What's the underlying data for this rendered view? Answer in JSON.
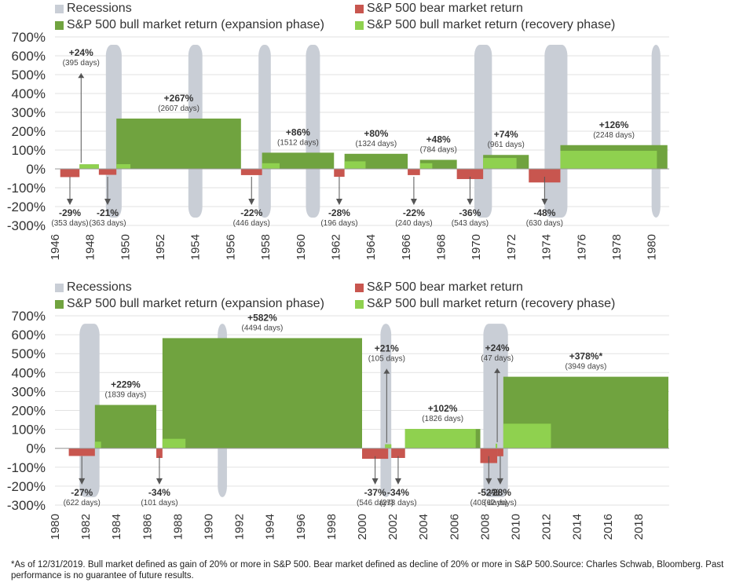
{
  "legend": {
    "recessions": "Recessions",
    "bear": "S&P 500 bear market return",
    "expansion": "S&P 500 bull market return (expansion phase)",
    "recovery": "S&P 500 bull market return (recovery phase)"
  },
  "colors": {
    "recession": "#c9ced6",
    "bear": "#c8564f",
    "expansion": "#70a33f",
    "recovery": "#8fd14f",
    "grid": "#e2e2e2",
    "arrow": "#555555"
  },
  "footnote": "*As of 12/31/2019. Bull market defined as gain of 20% or more in S&P 500. Bear market defined as decline of 20% or more in S&P 500.Source: Charles Schwab, Bloomberg. Past performance is no guarantee of future results.",
  "chart_data": [
    {
      "type": "bar",
      "ylim": [
        -300,
        700
      ],
      "yticks": [
        700,
        600,
        500,
        400,
        300,
        200,
        100,
        0,
        -100,
        -200,
        -300
      ],
      "yticklabels": [
        "700%",
        "600%",
        "500%",
        "400%",
        "300%",
        "200%",
        "100%",
        "0%",
        "-100%",
        "-200%",
        "-300%"
      ],
      "xlim": [
        1946,
        1981
      ],
      "xticks": [
        "1946",
        "1948",
        "1950",
        "1952",
        "1954",
        "1956",
        "1958",
        "1960",
        "1962",
        "1964",
        "1966",
        "1968",
        "1970",
        "1972",
        "1974",
        "1976",
        "1978",
        "1980"
      ],
      "recessions": [
        [
          1948.9,
          1949.8
        ],
        [
          1953.6,
          1954.4
        ],
        [
          1957.6,
          1958.3
        ],
        [
          1960.3,
          1961.1
        ],
        [
          1969.9,
          1970.9
        ],
        [
          1973.9,
          1975.2
        ],
        [
          1980.0,
          1980.5
        ]
      ],
      "bear_markets": [
        {
          "start": 1946.3,
          "end": 1947.4,
          "value": -29,
          "label": "-29%",
          "days": "(353 days)"
        },
        {
          "start": 1948.5,
          "end": 1949.5,
          "value": -21,
          "label": "-21%",
          "days": "(363 days)"
        },
        {
          "start": 1956.6,
          "end": 1957.8,
          "value": -22,
          "label": "-22%",
          "days": "(446 days)"
        },
        {
          "start": 1961.9,
          "end": 1962.5,
          "value": -28,
          "label": "-28%",
          "days": "(196 days)"
        },
        {
          "start": 1966.1,
          "end": 1966.8,
          "value": -22,
          "label": "-22%",
          "days": "(240 days)"
        },
        {
          "start": 1968.9,
          "end": 1970.4,
          "value": -36,
          "label": "-36%",
          "days": "(543 days)"
        },
        {
          "start": 1973.0,
          "end": 1974.8,
          "value": -48,
          "label": "-48%",
          "days": "(630 days)"
        }
      ],
      "bull_markets": [
        {
          "start": 1947.4,
          "end": 1948.5,
          "value": 24,
          "recovery_end": 1948.5,
          "recovery_value": 24,
          "label": "+24%",
          "days": "(395 days)"
        },
        {
          "start": 1949.5,
          "end": 1956.6,
          "value": 267,
          "recovery_end": 1950.3,
          "recovery_value": 25,
          "label": "+267%",
          "days": "(2607 days)"
        },
        {
          "start": 1957.8,
          "end": 1961.9,
          "value": 86,
          "recovery_end": 1958.8,
          "recovery_value": 30,
          "label": "+86%",
          "days": "(1512 days)"
        },
        {
          "start": 1962.5,
          "end": 1966.1,
          "value": 80,
          "recovery_end": 1963.7,
          "recovery_value": 40,
          "label": "+80%",
          "days": "(1324 days)"
        },
        {
          "start": 1966.8,
          "end": 1968.9,
          "value": 48,
          "recovery_end": 1967.5,
          "recovery_value": 30,
          "label": "+48%",
          "days": "(784 days)"
        },
        {
          "start": 1970.4,
          "end": 1973.0,
          "value": 74,
          "recovery_end": 1972.3,
          "recovery_value": 58,
          "label": "+74%",
          "days": "(961 days)"
        },
        {
          "start": 1974.8,
          "end": 1980.9,
          "value": 126,
          "recovery_end": 1980.3,
          "recovery_value": 96,
          "label": "+126%",
          "days": "(2248 days)"
        }
      ]
    },
    {
      "type": "bar",
      "ylim": [
        -300,
        700
      ],
      "yticks": [
        700,
        600,
        500,
        400,
        300,
        200,
        100,
        0,
        -100,
        -200,
        -300
      ],
      "yticklabels": [
        "700%",
        "600%",
        "500%",
        "400%",
        "300%",
        "200%",
        "100%",
        "0%",
        "-100%",
        "-200%",
        "-300%"
      ],
      "xlim": [
        1980,
        2020
      ],
      "xticks": [
        "1980",
        "1982",
        "1984",
        "1986",
        "1988",
        "1990",
        "1992",
        "1994",
        "1996",
        "1998",
        "2000",
        "2002",
        "2004",
        "2006",
        "2008",
        "2010",
        "2012",
        "2014",
        "2016",
        "2018"
      ],
      "recessions": [
        [
          1981.6,
          1982.9
        ],
        [
          1990.6,
          1991.2
        ],
        [
          2001.2,
          2001.9
        ],
        [
          2007.9,
          2009.5
        ]
      ],
      "bear_markets": [
        {
          "start": 1980.9,
          "end": 1982.6,
          "value": -27,
          "label": "-27%",
          "days": "(622 days)"
        },
        {
          "start": 1986.6,
          "end": 1987.0,
          "value": -34,
          "label": "-34%",
          "days": "(101 days)"
        },
        {
          "start": 2000.0,
          "end": 2001.7,
          "value": -37,
          "label": "-37%",
          "days": "(546 days)"
        },
        {
          "start": 2001.9,
          "end": 2002.8,
          "value": -34,
          "label": "-34%",
          "days": "(278 days)"
        },
        {
          "start": 2007.7,
          "end": 2008.8,
          "value": -52,
          "label": "-52%",
          "days": "(408 days)"
        },
        {
          "start": 2008.8,
          "end": 2009.2,
          "value": -28,
          "label": "-28%",
          "days": "(62 days)"
        }
      ],
      "bull_markets": [
        {
          "start": 1982.6,
          "end": 1986.6,
          "value": 229,
          "recovery_end": 1983.0,
          "recovery_value": 35,
          "label": "+229%",
          "days": "(1839 days)"
        },
        {
          "start": 1987.0,
          "end": 2000.0,
          "value": 582,
          "recovery_end": 1988.5,
          "recovery_value": 50,
          "label": "+582%",
          "days": "(4494 days)"
        },
        {
          "start": 2001.5,
          "end": 2001.9,
          "value": 21,
          "recovery_end": 2001.9,
          "recovery_value": 21,
          "label": "+21%",
          "days": "(105 days)"
        },
        {
          "start": 2002.8,
          "end": 2007.7,
          "value": 102,
          "recovery_end": 2007.4,
          "recovery_value": 102,
          "label": "+102%",
          "days": "(1826 days)"
        },
        {
          "start": 2008.7,
          "end": 2008.8,
          "value": 24,
          "recovery_end": 2008.8,
          "recovery_value": 24,
          "label": "+24%",
          "days": "(47 days)"
        },
        {
          "start": 2009.2,
          "end": 2019.95,
          "value": 378,
          "recovery_end": 2012.3,
          "recovery_value": 130,
          "label": "+378%*",
          "days": "(3949 days)"
        }
      ]
    }
  ]
}
